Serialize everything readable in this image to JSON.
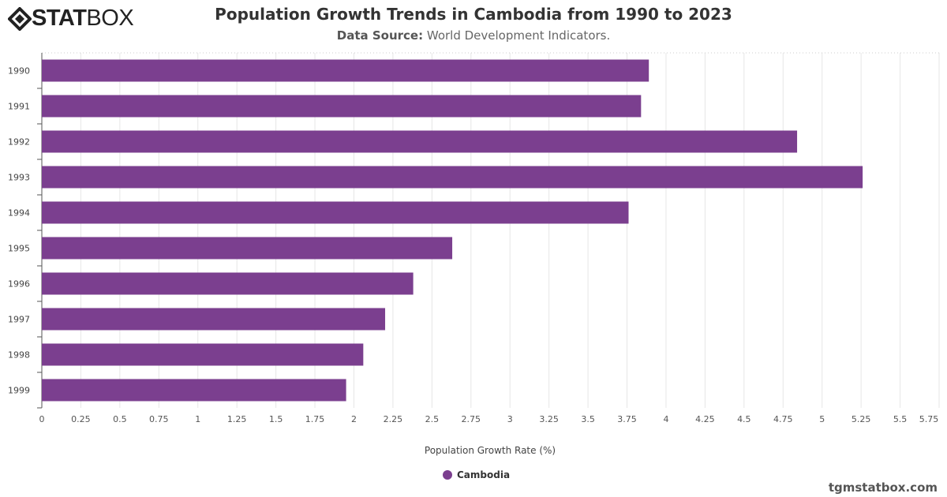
{
  "logo": {
    "bold": "STAT",
    "light": "BOX"
  },
  "credit": "tgmstatbox.com",
  "colors": {
    "bar": "#7b3f8f",
    "grid": "#e6e6e6"
  },
  "chart_data": {
    "type": "bar",
    "orientation": "horizontal",
    "title": "Population Growth Trends in Cambodia from 1990 to 2023",
    "subtitle_label": "Data Source:",
    "subtitle_text": "World Development Indicators.",
    "xlabel": "Population Growth Rate (%)",
    "ylabel": "",
    "xlim": [
      0,
      5.75
    ],
    "xticks": [
      "0",
      "0.25",
      "0.5",
      "0.75",
      "1",
      "1.25",
      "1.5",
      "1.75",
      "2",
      "2.25",
      "2.5",
      "2.75",
      "3",
      "3.25",
      "3.5",
      "3.75",
      "4",
      "4.25",
      "4.5",
      "4.75",
      "5",
      "5.25",
      "5.5",
      "5.75"
    ],
    "categories": [
      "1990",
      "1991",
      "1992",
      "1993",
      "1994",
      "1995",
      "1996",
      "1997",
      "1998",
      "1999"
    ],
    "series": [
      {
        "name": "Cambodia",
        "values": [
          3.89,
          3.84,
          4.84,
          5.26,
          3.76,
          2.63,
          2.38,
          2.2,
          2.06,
          1.95
        ]
      }
    ],
    "grid": true,
    "legend": "bottom"
  }
}
